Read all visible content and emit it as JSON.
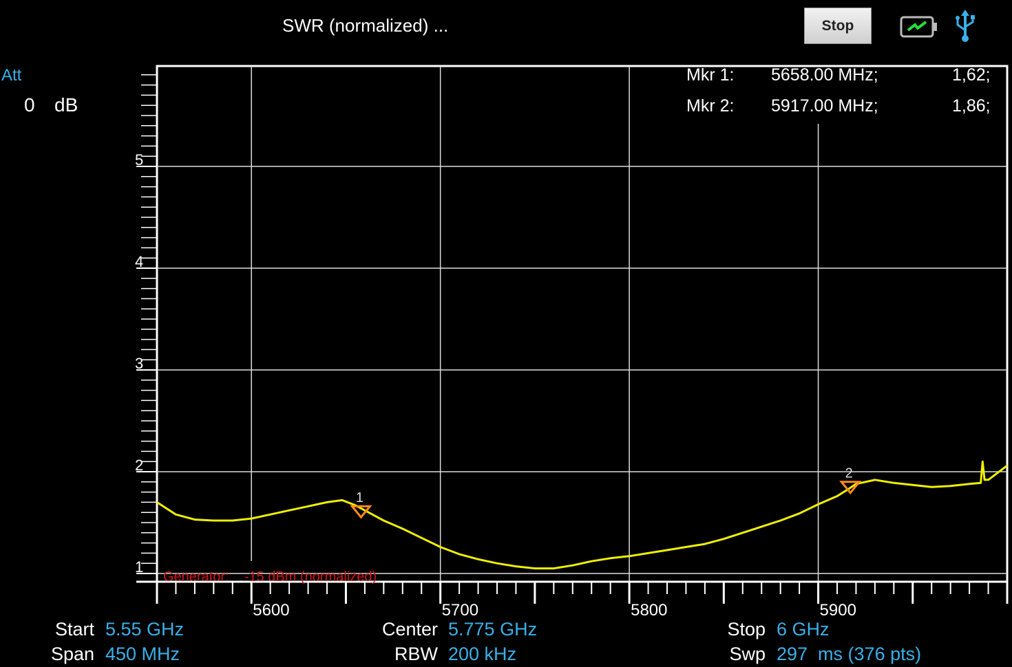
{
  "header": {
    "title": "SWR (normalized) ...",
    "stop_label": "Stop",
    "battery_icon": "battery-charging-icon",
    "usb_icon": "usb-icon"
  },
  "attenuation": {
    "label": "Att",
    "value": "0",
    "unit": "dB"
  },
  "markers": [
    {
      "name": "Mkr 1:",
      "freq": "5658.00 MHz;",
      "value": "1,62;"
    },
    {
      "name": "Mkr 2:",
      "freq": "5917.00 MHz;",
      "value": "1,86;"
    }
  ],
  "generator_note": "Generator:    -15 dBm (normalized)",
  "footer": {
    "start_label": "Start",
    "start_value": "5.55 GHz",
    "span_label": "Span",
    "span_value": "450 MHz",
    "center_label": "Center",
    "center_value": "5.775 GHz",
    "rbw_label": "RBW",
    "rbw_value": "200 kHz",
    "stop_label": "Stop",
    "stop_value": "6 GHz",
    "swp_label": "Swp",
    "swp_value": "297  ms (376 pts)"
  },
  "colors": {
    "trace": "#f0f000",
    "marker": "#ff8a1a",
    "accent": "#3ab0e8",
    "generator": "#d01818"
  },
  "chart_data": {
    "type": "line",
    "xlim": [
      5550,
      6000
    ],
    "ylim": [
      1,
      6
    ],
    "x_ticks": [
      5600,
      5700,
      5800,
      5900
    ],
    "y_ticks": [
      1,
      2,
      3,
      4,
      5
    ],
    "grid": true,
    "series": [
      {
        "x": [
          5550,
          5560,
          5570,
          5580,
          5590,
          5600,
          5610,
          5620,
          5630,
          5640,
          5648,
          5655,
          5662,
          5670,
          5680,
          5690,
          5700,
          5710,
          5720,
          5730,
          5740,
          5750,
          5760,
          5770,
          5780,
          5790,
          5800,
          5810,
          5820,
          5830,
          5840,
          5850,
          5860,
          5870,
          5880,
          5890,
          5900,
          5910,
          5916,
          5920,
          5930,
          5940,
          5950,
          5960,
          5970,
          5980,
          5986,
          5987,
          5988,
          5990,
          6000
        ],
        "y": [
          1.7,
          1.58,
          1.53,
          1.52,
          1.52,
          1.54,
          1.58,
          1.62,
          1.66,
          1.7,
          1.72,
          1.67,
          1.6,
          1.52,
          1.44,
          1.35,
          1.26,
          1.19,
          1.14,
          1.1,
          1.07,
          1.05,
          1.05,
          1.08,
          1.12,
          1.15,
          1.17,
          1.2,
          1.23,
          1.26,
          1.29,
          1.34,
          1.4,
          1.46,
          1.52,
          1.59,
          1.68,
          1.76,
          1.83,
          1.88,
          1.92,
          1.89,
          1.87,
          1.85,
          1.86,
          1.88,
          1.89,
          2.1,
          1.92,
          1.92,
          2.06
        ]
      }
    ],
    "markers": [
      {
        "label": "1",
        "x": 5658,
        "y": 1.62
      },
      {
        "label": "2",
        "x": 5917,
        "y": 1.86
      }
    ]
  }
}
